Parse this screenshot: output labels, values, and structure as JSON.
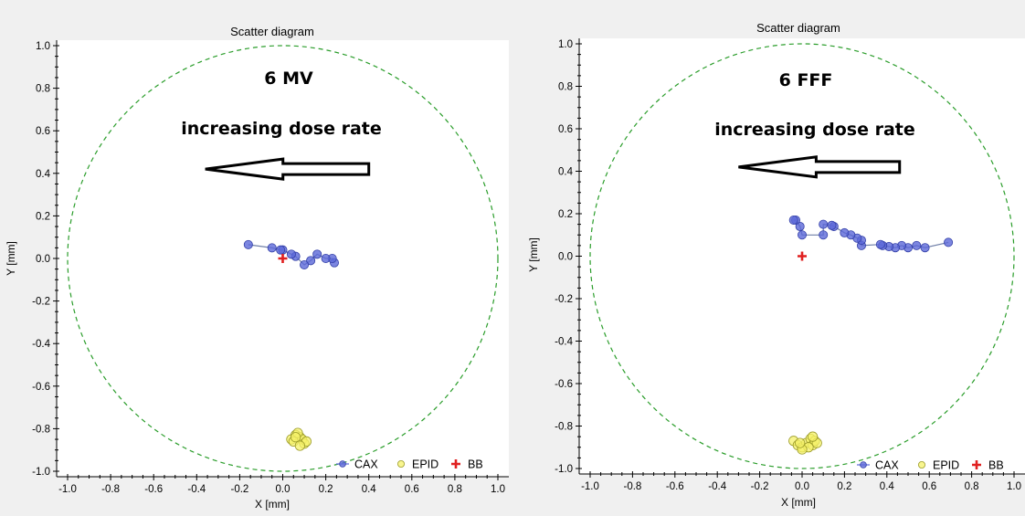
{
  "legend_labels": {
    "cax": "CAX",
    "epid": "EPID",
    "bb": "BB"
  },
  "colors": {
    "cax": "#5b68d8",
    "epid": "#f5f26a",
    "bb": "#e02020",
    "circle": "#2a9d2a"
  },
  "chart_data": [
    {
      "type": "scatter",
      "title": "Scatter diagram",
      "xlabel": "X [mm]",
      "ylabel": "Y [mm]",
      "xlim": [
        -1.0,
        1.0
      ],
      "ylim": [
        -1.0,
        1.0
      ],
      "ticks": [
        "-1.0",
        "-0.8",
        "-0.6",
        "-0.4",
        "-0.2",
        "0.0",
        "0.2",
        "0.4",
        "0.6",
        "0.8",
        "1.0"
      ],
      "grid": false,
      "legend_position": "bottom-right",
      "annotation_label": "6 MV",
      "annotation_text": "increasing dose rate",
      "arrow": {
        "from": [
          0.4,
          0.42
        ],
        "to": [
          -0.36,
          0.42
        ]
      },
      "reference_circle_radius": 1.0,
      "series": [
        {
          "name": "CAX",
          "marker": "circle",
          "connected": true,
          "x": [
            0.24,
            0.23,
            0.2,
            0.16,
            0.13,
            0.1,
            0.06,
            0.04,
            0.0,
            -0.01,
            -0.05,
            -0.16
          ],
          "y": [
            -0.02,
            0.0,
            0.0,
            0.02,
            -0.01,
            -0.03,
            0.01,
            0.02,
            0.04,
            0.04,
            0.05,
            0.065
          ]
        },
        {
          "name": "EPID",
          "marker": "circle",
          "connected": false,
          "x": [
            0.04,
            0.06,
            0.08,
            0.05,
            0.09,
            0.1,
            0.11,
            0.07,
            0.08,
            0.06
          ],
          "y": [
            -0.85,
            -0.83,
            -0.84,
            -0.86,
            -0.85,
            -0.87,
            -0.86,
            -0.82,
            -0.88,
            -0.84
          ]
        },
        {
          "name": "BB",
          "marker": "plus",
          "x": [
            0.0
          ],
          "y": [
            0.0
          ]
        }
      ]
    },
    {
      "type": "scatter",
      "title": "Scatter diagram",
      "xlabel": "X [mm]",
      "ylabel": "Y [mm]",
      "xlim": [
        -1.0,
        1.0
      ],
      "ylim": [
        -1.0,
        1.0
      ],
      "ticks": [
        "-1.0",
        "-0.8",
        "-0.6",
        "-0.4",
        "-0.2",
        "0.0",
        "0.2",
        "0.4",
        "0.6",
        "0.8",
        "1.0"
      ],
      "grid": false,
      "legend_position": "bottom-right",
      "annotation_label": "6 FFF",
      "annotation_text": "increasing dose rate",
      "arrow": {
        "from": [
          0.46,
          0.42
        ],
        "to": [
          -0.3,
          0.42
        ]
      },
      "reference_circle_radius": 1.0,
      "series": [
        {
          "name": "CAX",
          "marker": "circle",
          "connected": true,
          "x": [
            0.69,
            0.58,
            0.54,
            0.5,
            0.47,
            0.44,
            0.41,
            0.38,
            0.37,
            0.28,
            0.28,
            0.26,
            0.23,
            0.2,
            0.15,
            0.14,
            0.1,
            0.1,
            0.0,
            -0.01,
            -0.03,
            -0.04
          ],
          "y": [
            0.065,
            0.04,
            0.05,
            0.04,
            0.05,
            0.04,
            0.045,
            0.05,
            0.055,
            0.05,
            0.075,
            0.085,
            0.1,
            0.11,
            0.14,
            0.145,
            0.15,
            0.1,
            0.1,
            0.14,
            0.17,
            0.17
          ]
        },
        {
          "name": "EPID",
          "marker": "circle",
          "connected": false,
          "x": [
            -0.04,
            -0.02,
            0.0,
            0.02,
            0.04,
            0.05,
            0.06,
            0.07,
            0.03,
            0.0,
            -0.01,
            0.05
          ],
          "y": [
            -0.87,
            -0.89,
            -0.9,
            -0.88,
            -0.86,
            -0.89,
            -0.87,
            -0.88,
            -0.9,
            -0.91,
            -0.88,
            -0.85
          ]
        },
        {
          "name": "BB",
          "marker": "plus",
          "x": [
            0.0
          ],
          "y": [
            0.0
          ]
        }
      ]
    }
  ]
}
